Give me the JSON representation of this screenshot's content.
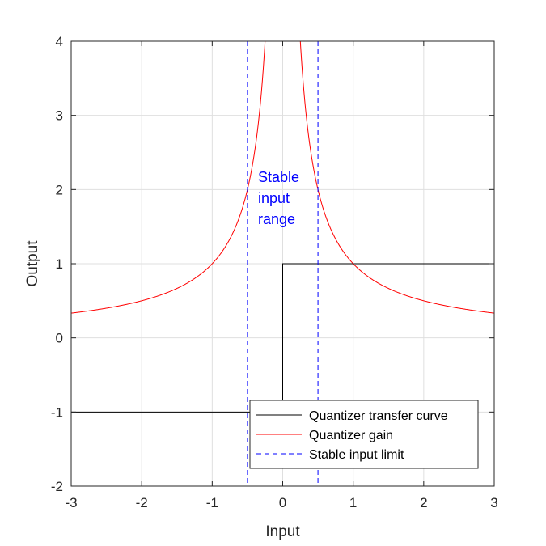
{
  "chart_data": {
    "type": "line",
    "xlabel": "Input",
    "ylabel": "Output",
    "xlim": [
      -3,
      3
    ],
    "ylim": [
      -2,
      4
    ],
    "xticks": [
      "-3",
      "-2",
      "-1",
      "0",
      "1",
      "2",
      "3"
    ],
    "yticks": [
      "-2",
      "-1",
      "0",
      "1",
      "2",
      "3",
      "4"
    ],
    "grid": true,
    "legend_position": "bottom-right",
    "series": [
      {
        "name": "Quantizer transfer curve",
        "color": "#000000",
        "style": "solid",
        "points": [
          [
            -3,
            -1
          ],
          [
            0,
            -1
          ],
          [
            0,
            1
          ],
          [
            3,
            1
          ]
        ]
      },
      {
        "name": "Quantizer gain",
        "color": "#ff0000",
        "style": "solid",
        "function": "1/abs(x)",
        "x_range": [
          -3,
          3
        ]
      },
      {
        "name": "Stable input limit",
        "color": "#0000ff",
        "style": "dashed",
        "x_positions": [
          -0.5,
          0.5
        ]
      }
    ],
    "annotations": [
      {
        "lines": [
          "Stable",
          "input",
          "range"
        ],
        "x": -0.35,
        "y": 2.1,
        "color": "#0000ff"
      }
    ]
  }
}
